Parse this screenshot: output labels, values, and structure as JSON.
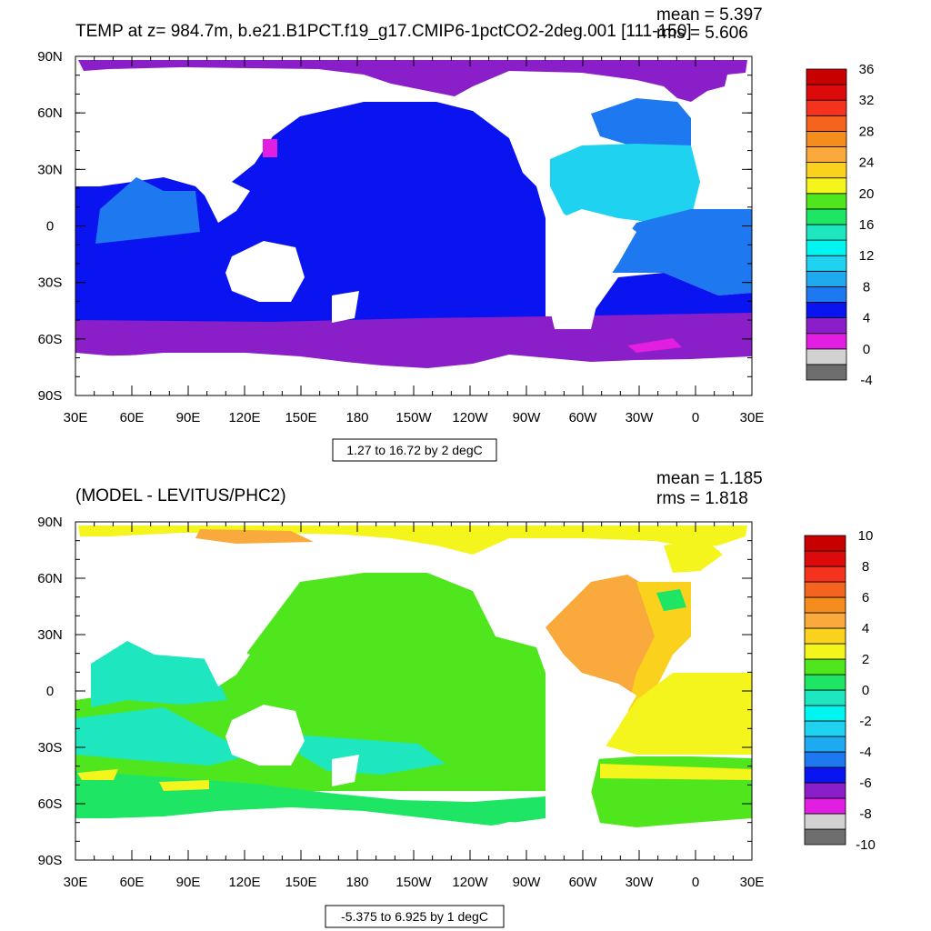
{
  "chart_data": [
    {
      "type": "heatmap",
      "title": "TEMP at z= 984.7m, b.e21.B1PCT.f19_g17.CMIP6-1pctCO2-2deg.001 [111-150]",
      "stats": {
        "mean": "mean = 5.397",
        "rms": "rms = 5.606"
      },
      "xlim": [
        30,
        390
      ],
      "ylim": [
        -90,
        90
      ],
      "x_ticks": [
        {
          "value": 30,
          "label": "30E"
        },
        {
          "value": 60,
          "label": "60E"
        },
        {
          "value": 90,
          "label": "90E"
        },
        {
          "value": 120,
          "label": "120E"
        },
        {
          "value": 150,
          "label": "150E"
        },
        {
          "value": 180,
          "label": "180"
        },
        {
          "value": 210,
          "label": "150W"
        },
        {
          "value": 240,
          "label": "120W"
        },
        {
          "value": 270,
          "label": "90W"
        },
        {
          "value": 300,
          "label": "60W"
        },
        {
          "value": 330,
          "label": "30W"
        },
        {
          "value": 360,
          "label": "0"
        },
        {
          "value": 390,
          "label": "30E"
        }
      ],
      "y_ticks": [
        {
          "value": 90,
          "label": "90N"
        },
        {
          "value": 60,
          "label": "60N"
        },
        {
          "value": 30,
          "label": "30N"
        },
        {
          "value": 0,
          "label": "0"
        },
        {
          "value": -30,
          "label": "30S"
        },
        {
          "value": -60,
          "label": "60S"
        },
        {
          "value": -90,
          "label": "90S"
        }
      ],
      "range_label": "1.27 to 16.72 by 2 degC",
      "colorbar": {
        "colors": [
          "#6e6e6e",
          "#d2d2d2",
          "#e11ee1",
          "#8a1ec8",
          "#0a14f0",
          "#1e78f0",
          "#1eaaf0",
          "#1ed2f0",
          "#00f5f0",
          "#1ee6be",
          "#1ee664",
          "#50e61e",
          "#f5f51e",
          "#fad21e",
          "#faaa3c",
          "#f58c1e",
          "#f5641e",
          "#f5321e",
          "#dc0a0a",
          "#c80000"
        ],
        "labels": [
          "-4",
          "0",
          "4",
          "8",
          "12",
          "16",
          "20",
          "24",
          "28",
          "32",
          "36"
        ]
      }
    },
    {
      "type": "heatmap",
      "title": "(MODEL - LEVITUS/PHC2)",
      "stats": {
        "mean": "mean = 1.185",
        "rms": "rms = 1.818"
      },
      "xlim": [
        30,
        390
      ],
      "ylim": [
        -90,
        90
      ],
      "x_ticks": [
        {
          "value": 30,
          "label": "30E"
        },
        {
          "value": 60,
          "label": "60E"
        },
        {
          "value": 90,
          "label": "90E"
        },
        {
          "value": 120,
          "label": "120E"
        },
        {
          "value": 150,
          "label": "150E"
        },
        {
          "value": 180,
          "label": "180"
        },
        {
          "value": 210,
          "label": "150W"
        },
        {
          "value": 240,
          "label": "120W"
        },
        {
          "value": 270,
          "label": "90W"
        },
        {
          "value": 300,
          "label": "60W"
        },
        {
          "value": 330,
          "label": "30W"
        },
        {
          "value": 360,
          "label": "0"
        },
        {
          "value": 390,
          "label": "30E"
        }
      ],
      "y_ticks": [
        {
          "value": 90,
          "label": "90N"
        },
        {
          "value": 60,
          "label": "60N"
        },
        {
          "value": 30,
          "label": "30N"
        },
        {
          "value": 0,
          "label": "0"
        },
        {
          "value": -30,
          "label": "30S"
        },
        {
          "value": -60,
          "label": "60S"
        },
        {
          "value": -90,
          "label": "90S"
        }
      ],
      "range_label": "-5.375 to 6.925 by 1 degC",
      "colorbar": {
        "colors": [
          "#6e6e6e",
          "#d2d2d2",
          "#e11ee1",
          "#8a1ec8",
          "#0a14f0",
          "#1e78f0",
          "#1eaaf0",
          "#1ed2f0",
          "#00f5f0",
          "#1ee6be",
          "#1ee664",
          "#50e61e",
          "#f5f51e",
          "#fad21e",
          "#faaa3c",
          "#f58c1e",
          "#f5641e",
          "#f5321e",
          "#dc0a0a",
          "#c80000"
        ],
        "labels": [
          "-10",
          "-8",
          "-6",
          "-4",
          "-2",
          "0",
          "2",
          "4",
          "6",
          "8",
          "10"
        ]
      }
    }
  ]
}
